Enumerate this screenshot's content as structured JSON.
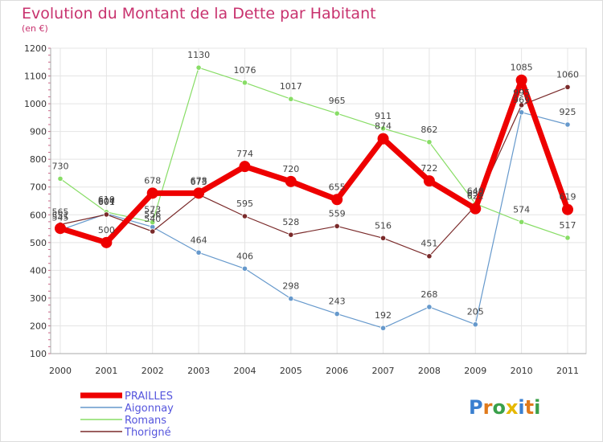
{
  "header": {
    "title": "Evolution du Montant de la Dette par Habitant",
    "subtitle": "(en €)"
  },
  "logo": {
    "text": "Proxiti",
    "letters": [
      {
        "char": "P",
        "color": "#3a7fd0"
      },
      {
        "char": "r",
        "color": "#e07a1c"
      },
      {
        "char": "o",
        "color": "#3aa04a"
      },
      {
        "char": "x",
        "color": "#e6b800"
      },
      {
        "char": "i",
        "color": "#3a7fd0"
      },
      {
        "char": "t",
        "color": "#e07a1c"
      },
      {
        "char": "i",
        "color": "#3aa04a"
      }
    ]
  },
  "chart_data": {
    "type": "line",
    "title": "Evolution du Montant de la Dette par Habitant",
    "subtitle": "(en €)",
    "xlabel": "",
    "ylabel": "",
    "x": [
      "2000",
      "2001",
      "2002",
      "2003",
      "2004",
      "2005",
      "2006",
      "2007",
      "2008",
      "2009",
      "2010",
      "2011"
    ],
    "ylim": [
      100,
      1200
    ],
    "yticks": [
      100,
      200,
      300,
      400,
      500,
      600,
      700,
      800,
      900,
      1000,
      1100,
      1200
    ],
    "grid": true,
    "legend_position": "bottom-left",
    "series": [
      {
        "name": "PRAILLES",
        "color": "#ee0000",
        "width": 7,
        "marker": 7,
        "label_color": "#444444",
        "values": [
          551,
          500,
          678,
          678,
          774,
          720,
          655,
          874,
          722,
          622,
          1085,
          619
        ]
      },
      {
        "name": "Aigonnay",
        "color": "#6699cc",
        "width": 1.2,
        "marker": 3.2,
        "label_color": "#444444",
        "values": [
          545,
          604,
          556,
          464,
          406,
          298,
          243,
          192,
          268,
          205,
          969,
          925
        ]
      },
      {
        "name": "Romans",
        "color": "#88dd66",
        "width": 1.2,
        "marker": 3.2,
        "label_color": "#444444",
        "values": [
          730,
          610,
          573,
          1130,
          1076,
          1017,
          965,
          911,
          862,
          640,
          574,
          517
        ]
      },
      {
        "name": "Thorigné",
        "color": "#7a2a2a",
        "width": 1.2,
        "marker": 3.2,
        "label_color": "#444444",
        "values": [
          565,
          601,
          540,
          673,
          595,
          528,
          559,
          516,
          451,
          632,
          995,
          1060
        ]
      }
    ],
    "data_labels": [
      {
        "series": 0,
        "index": 0,
        "text": "551"
      },
      {
        "series": 0,
        "index": 1,
        "text": "500"
      },
      {
        "series": 0,
        "index": 2,
        "text": "678"
      },
      {
        "series": 0,
        "index": 3,
        "text": "678"
      },
      {
        "series": 0,
        "index": 4,
        "text": "774"
      },
      {
        "series": 0,
        "index": 5,
        "text": "720"
      },
      {
        "series": 0,
        "index": 6,
        "text": "655"
      },
      {
        "series": 0,
        "index": 7,
        "text": "874"
      },
      {
        "series": 0,
        "index": 8,
        "text": "722"
      },
      {
        "series": 0,
        "index": 9,
        "text": "622"
      },
      {
        "series": 0,
        "index": 10,
        "text": "1085"
      },
      {
        "series": 0,
        "index": 11,
        "text": "619"
      },
      {
        "series": 1,
        "index": 0,
        "text": "545"
      },
      {
        "series": 1,
        "index": 1,
        "text": "604"
      },
      {
        "series": 1,
        "index": 2,
        "text": "556"
      },
      {
        "series": 1,
        "index": 3,
        "text": "464"
      },
      {
        "series": 1,
        "index": 4,
        "text": "406"
      },
      {
        "series": 1,
        "index": 5,
        "text": "298"
      },
      {
        "series": 1,
        "index": 6,
        "text": "243"
      },
      {
        "series": 1,
        "index": 7,
        "text": "192"
      },
      {
        "series": 1,
        "index": 8,
        "text": "268"
      },
      {
        "series": 1,
        "index": 9,
        "text": "205"
      },
      {
        "series": 1,
        "index": 10,
        "text": "969"
      },
      {
        "series": 1,
        "index": 11,
        "text": "925"
      },
      {
        "series": 2,
        "index": 0,
        "text": "730"
      },
      {
        "series": 2,
        "index": 1,
        "text": "610"
      },
      {
        "series": 2,
        "index": 2,
        "text": "573"
      },
      {
        "series": 2,
        "index": 3,
        "text": "1130"
      },
      {
        "series": 2,
        "index": 4,
        "text": "1076"
      },
      {
        "series": 2,
        "index": 5,
        "text": "1017"
      },
      {
        "series": 2,
        "index": 6,
        "text": "965"
      },
      {
        "series": 2,
        "index": 7,
        "text": "911"
      },
      {
        "series": 2,
        "index": 8,
        "text": "862"
      },
      {
        "series": 2,
        "index": 9,
        "text": "640"
      },
      {
        "series": 2,
        "index": 10,
        "text": "574"
      },
      {
        "series": 2,
        "index": 11,
        "text": "517"
      },
      {
        "series": 3,
        "index": 0,
        "text": "565"
      },
      {
        "series": 3,
        "index": 1,
        "text": "601"
      },
      {
        "series": 3,
        "index": 2,
        "text": "540"
      },
      {
        "series": 3,
        "index": 3,
        "text": "673"
      },
      {
        "series": 3,
        "index": 4,
        "text": "595"
      },
      {
        "series": 3,
        "index": 5,
        "text": "528"
      },
      {
        "series": 3,
        "index": 6,
        "text": "559"
      },
      {
        "series": 3,
        "index": 7,
        "text": "516"
      },
      {
        "series": 3,
        "index": 8,
        "text": "451"
      },
      {
        "series": 3,
        "index": 9,
        "text": "632"
      },
      {
        "series": 3,
        "index": 10,
        "text": "995"
      },
      {
        "series": 3,
        "index": 11,
        "text": "1060"
      }
    ]
  }
}
